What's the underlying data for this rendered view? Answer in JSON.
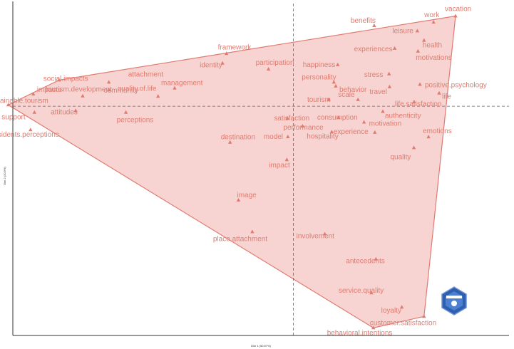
{
  "chart_data": {
    "type": "scatter",
    "title": "",
    "xlabel": "Dim 1 (50.87%)",
    "ylabel": "Dim 2 (20.9%)",
    "xlim": [
      -1.3,
      1.0
    ],
    "ylim": [
      -1.05,
      0.48
    ],
    "grid": false,
    "reference_lines": {
      "x": 0,
      "y": 0
    },
    "colors": {
      "points": "#e07b70",
      "hull_fill": "#f4c6c2",
      "hull_stroke": "#e07b70",
      "ref_lines": "#666666",
      "axes": "#333333"
    },
    "points": [
      {
        "label": "vacation",
        "x": 0.752,
        "y": 0.413
      },
      {
        "label": "work",
        "x": 0.65,
        "y": 0.385
      },
      {
        "label": "benefits",
        "x": 0.375,
        "y": 0.369
      },
      {
        "label": "leisure",
        "x": 0.575,
        "y": 0.345
      },
      {
        "label": "health",
        "x": 0.606,
        "y": 0.302
      },
      {
        "label": "experiences",
        "x": 0.47,
        "y": 0.265
      },
      {
        "label": "motivations",
        "x": 0.578,
        "y": 0.252
      },
      {
        "label": "happiness",
        "x": 0.206,
        "y": 0.19
      },
      {
        "label": "stress",
        "x": 0.444,
        "y": 0.148
      },
      {
        "label": "positive.psychology",
        "x": 0.587,
        "y": 0.1
      },
      {
        "label": "personality",
        "x": 0.188,
        "y": 0.11
      },
      {
        "label": "behavior",
        "x": 0.197,
        "y": 0.092
      },
      {
        "label": "travel",
        "x": 0.446,
        "y": 0.089
      },
      {
        "label": "life",
        "x": 0.676,
        "y": 0.06
      },
      {
        "label": "tourism",
        "x": 0.164,
        "y": 0.03
      },
      {
        "label": "scale",
        "x": 0.3,
        "y": 0.03
      },
      {
        "label": "life.satisfaction",
        "x": 0.56,
        "y": 0.02
      },
      {
        "label": "authenticity",
        "x": 0.415,
        "y": -0.024
      },
      {
        "label": "consumption",
        "x": 0.21,
        "y": -0.052
      },
      {
        "label": "motivation",
        "x": 0.328,
        "y": -0.073
      },
      {
        "label": "emotions",
        "x": 0.627,
        "y": -0.14
      },
      {
        "label": "experience",
        "x": 0.378,
        "y": -0.12
      },
      {
        "label": "quality",
        "x": 0.559,
        "y": -0.19
      },
      {
        "label": "satisfaction",
        "x": -0.027,
        "y": -0.055
      },
      {
        "label": "performance",
        "x": 0.043,
        "y": -0.091
      },
      {
        "label": "hospitality",
        "x": 0.178,
        "y": -0.118
      },
      {
        "label": "model",
        "x": -0.025,
        "y": -0.14
      },
      {
        "label": "impact",
        "x": -0.03,
        "y": -0.245
      },
      {
        "label": "framework",
        "x": -0.31,
        "y": 0.241
      },
      {
        "label": "identity",
        "x": -0.328,
        "y": 0.197
      },
      {
        "label": "participation",
        "x": -0.115,
        "y": 0.17
      },
      {
        "label": "management",
        "x": -0.55,
        "y": 0.083
      },
      {
        "label": "attachment",
        "x": -0.855,
        "y": 0.11
      },
      {
        "label": "quality.of.life",
        "x": -0.627,
        "y": 0.045
      },
      {
        "label": "community",
        "x": -0.855,
        "y": 0.075
      },
      {
        "label": "perceptions",
        "x": -0.776,
        "y": -0.028
      },
      {
        "label": "tourism.development",
        "x": -0.976,
        "y": 0.047
      },
      {
        "label": "social.impacts",
        "x": -1.086,
        "y": 0.12
      },
      {
        "label": "impacts",
        "x": -1.205,
        "y": 0.056
      },
      {
        "label": "sustainable.tourism",
        "x": -1.321,
        "y": 0.006
      },
      {
        "label": "support",
        "x": -1.2,
        "y": -0.028
      },
      {
        "label": "attitudes",
        "x": -1.009,
        "y": -0.02
      },
      {
        "label": "residents.perceptions",
        "x": -1.218,
        "y": -0.108
      },
      {
        "label": "destination",
        "x": -0.293,
        "y": -0.165
      },
      {
        "label": "image",
        "x": -0.254,
        "y": -0.43
      },
      {
        "label": "place.attachment",
        "x": -0.19,
        "y": -0.575
      },
      {
        "label": "involvement",
        "x": 0.146,
        "y": -0.585
      },
      {
        "label": "antecedents",
        "x": 0.383,
        "y": -0.7
      },
      {
        "label": "service.quality",
        "x": 0.362,
        "y": -0.855
      },
      {
        "label": "loyalty",
        "x": 0.503,
        "y": -0.92
      },
      {
        "label": "customer.satisfaction",
        "x": 0.606,
        "y": -0.963
      },
      {
        "label": "behavioral.intentions",
        "x": 0.371,
        "y": -1.015
      }
    ],
    "hull_order": [
      "vacation",
      "customer.satisfaction",
      "behavioral.intentions",
      "sustainable.tourism",
      "social.impacts"
    ]
  }
}
